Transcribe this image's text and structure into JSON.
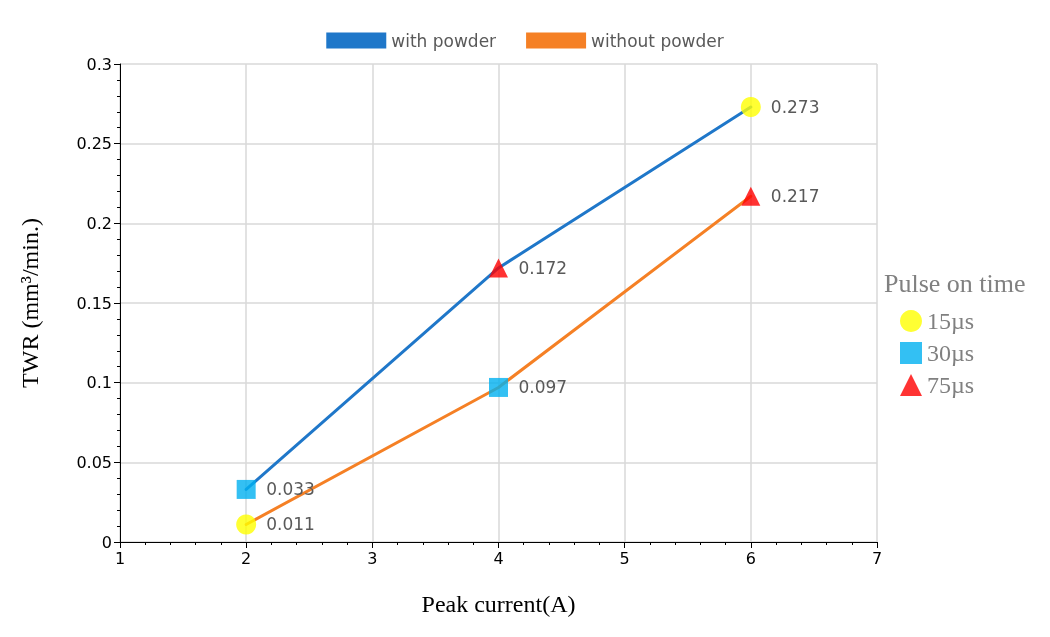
{
  "chart_data": {
    "type": "line",
    "xlabel": "Peak current(A)",
    "ylabel": "TWR (mm³/min.)",
    "legend_title": "Pulse on time",
    "xlim": [
      1,
      7
    ],
    "xticks": [
      1,
      2,
      3,
      4,
      5,
      6,
      7
    ],
    "ylim": [
      0,
      0.3
    ],
    "yticks": [
      0,
      0.05,
      0.1,
      0.15,
      0.2,
      0.25,
      0.3
    ],
    "grid": true,
    "legend": "top",
    "marker": "none",
    "line_style": "solid",
    "series": [
      {
        "name": "with powder",
        "color": "#1f77c9",
        "x": [
          2,
          4,
          6
        ],
        "values": [
          0.033,
          0.172,
          0.273
        ],
        "value_labels": [
          "0.033",
          "0.172",
          "0.273"
        ]
      },
      {
        "name": "without powder",
        "color": "#f58025",
        "x": [
          2,
          4,
          6
        ],
        "values": [
          0.011,
          0.097,
          0.217
        ],
        "value_labels": [
          "0.011",
          "0.097",
          "0.217"
        ]
      },
      {
        "name": "15µs",
        "type": "scatter",
        "marker": "circle",
        "color": "#ffff00",
        "x": [
          2,
          6
        ],
        "values": [
          0.011,
          0.273
        ]
      },
      {
        "name": "30µs",
        "type": "scatter",
        "marker": "square",
        "color": "#00b0f0",
        "x": [
          2,
          4
        ],
        "values": [
          0.033,
          0.097
        ]
      },
      {
        "name": "75µs",
        "type": "scatter",
        "marker": "triangle",
        "color": "#ff0000",
        "x": [
          4,
          6
        ],
        "values": [
          0.172,
          0.217
        ]
      }
    ]
  }
}
